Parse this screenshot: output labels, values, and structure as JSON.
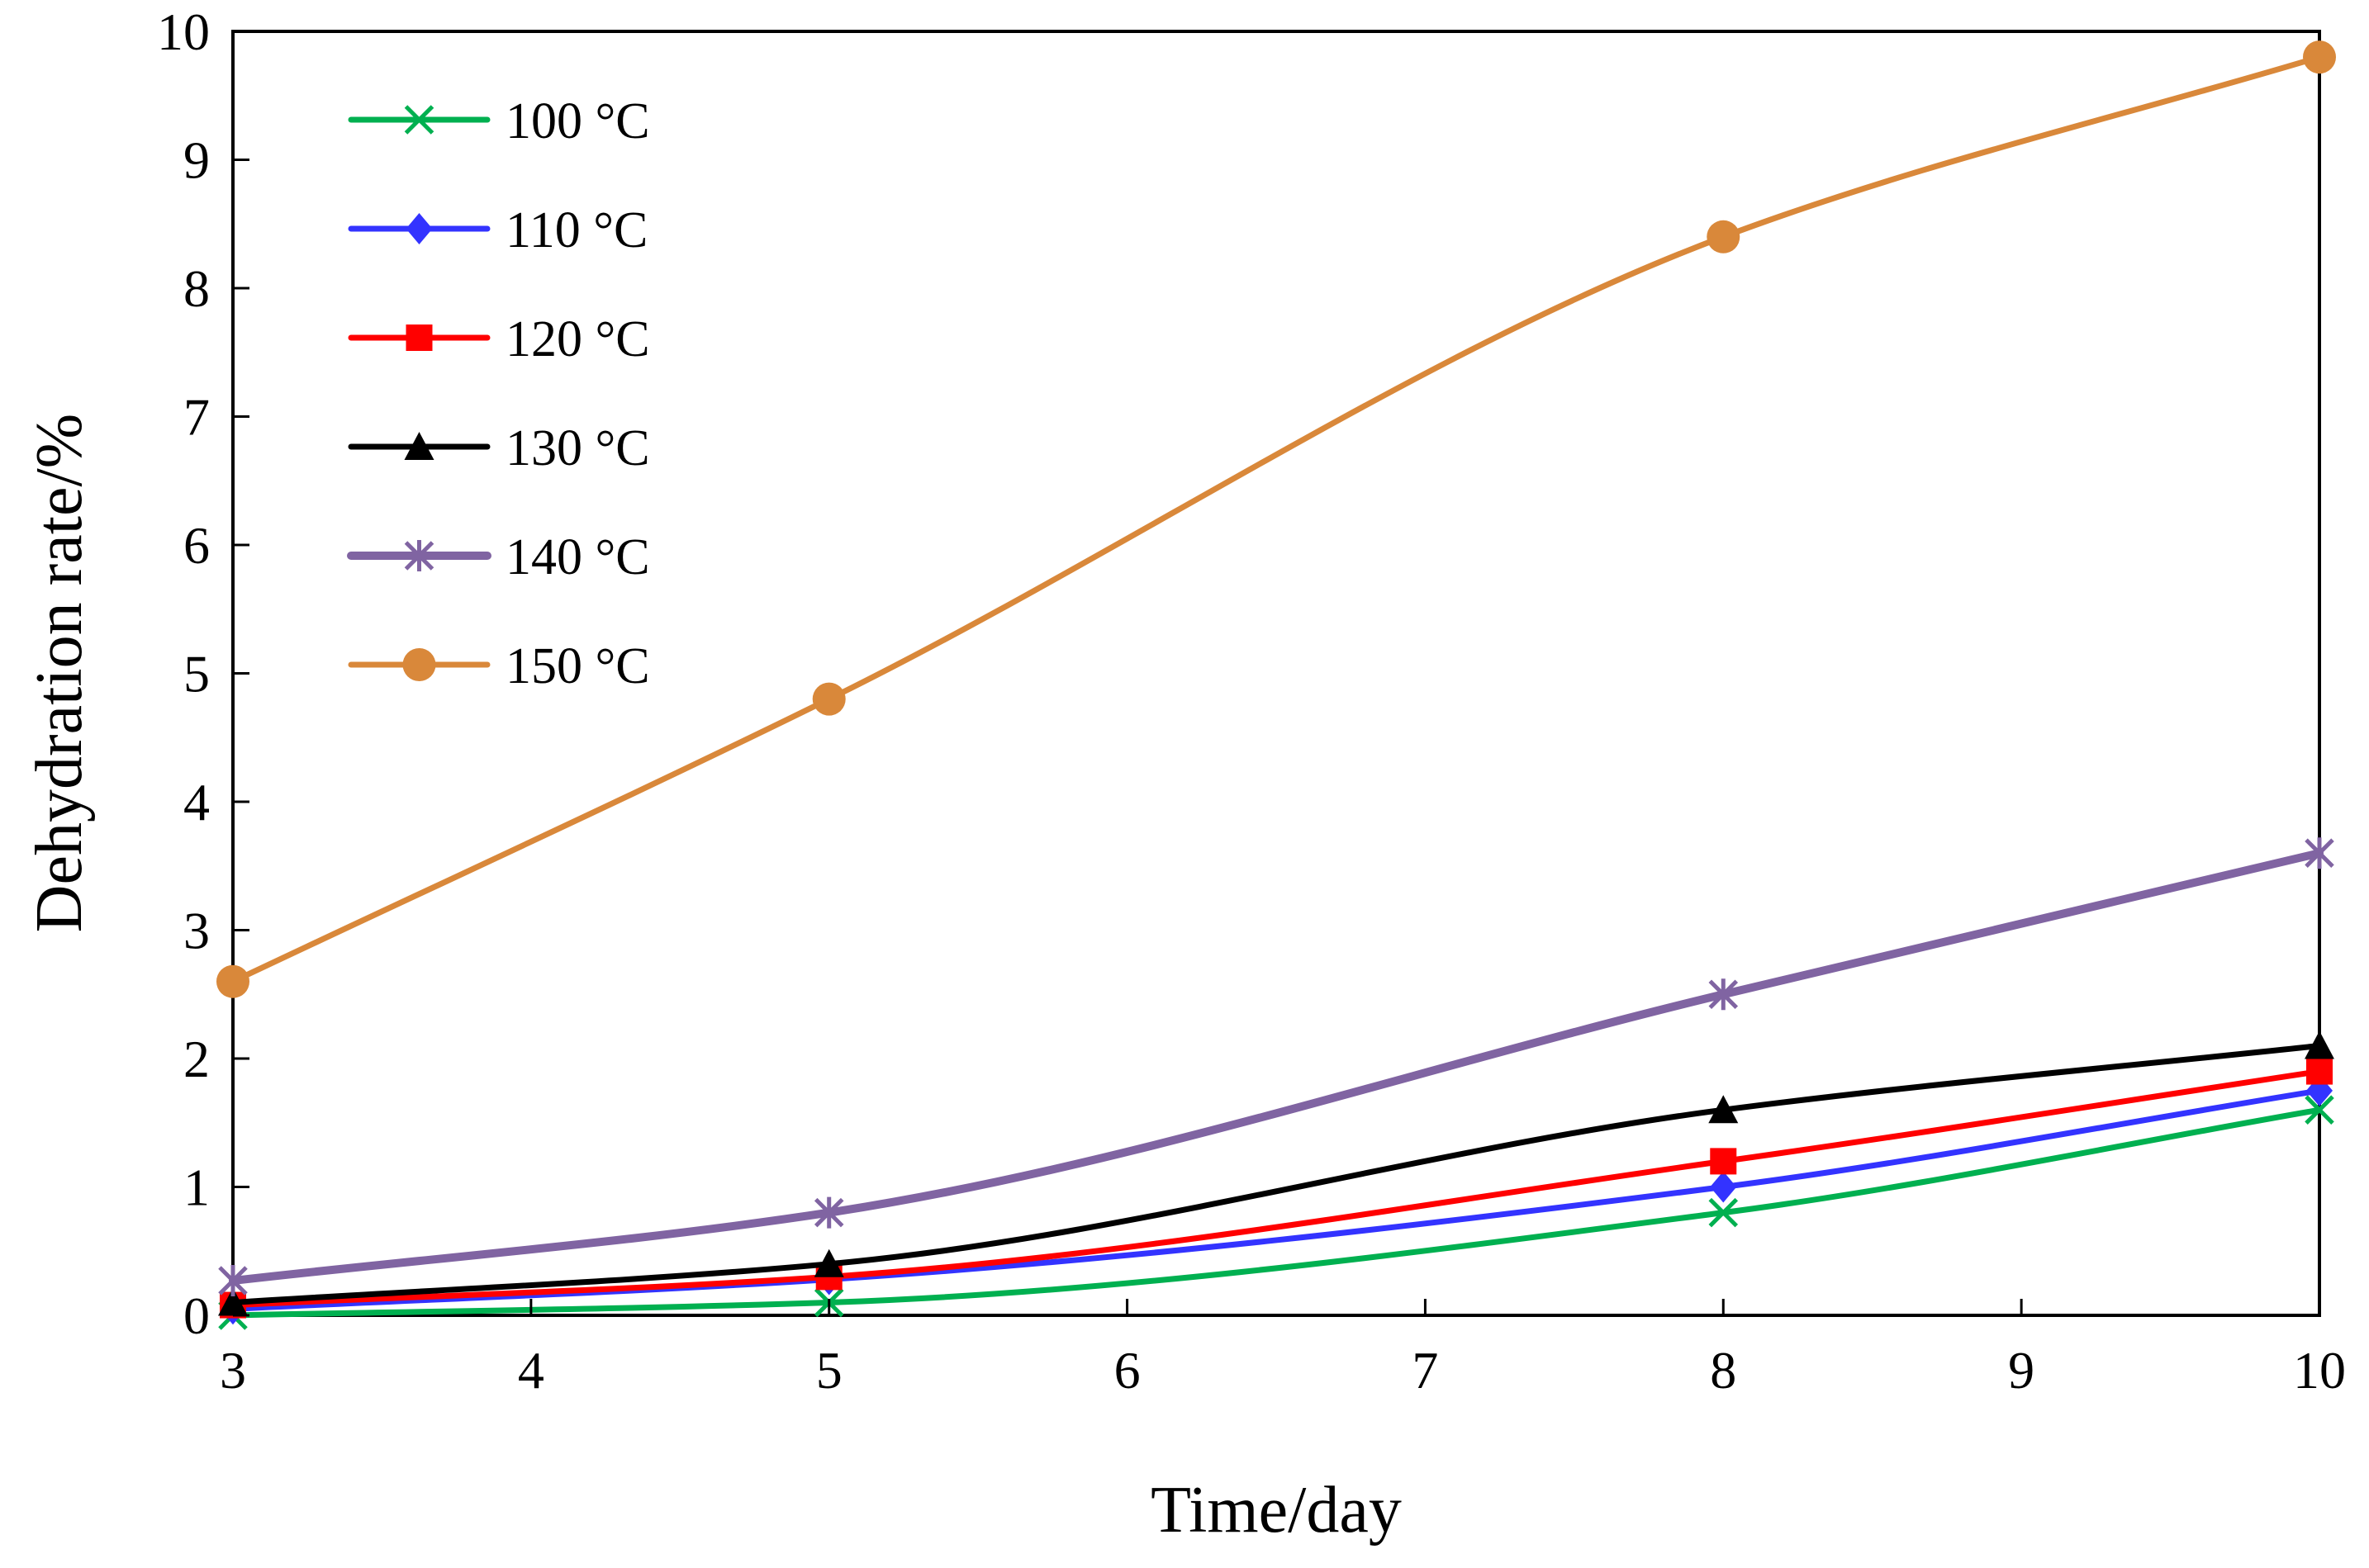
{
  "chart_data": {
    "type": "line",
    "title": "",
    "xlabel": "Time/day",
    "ylabel": "Dehydration rate/%",
    "xlim": [
      3,
      10
    ],
    "ylim": [
      0,
      10
    ],
    "xticks": [
      3,
      4,
      5,
      6,
      7,
      8,
      9,
      10
    ],
    "yticks": [
      0,
      1,
      2,
      3,
      4,
      5,
      6,
      7,
      8,
      9,
      10
    ],
    "grid": false,
    "legend_position": "top-left",
    "x": [
      3,
      5,
      8,
      10
    ],
    "series": [
      {
        "name": "100 °C",
        "values": [
          0.0,
          0.1,
          0.8,
          1.6
        ],
        "color": "#00b050",
        "marker": "x"
      },
      {
        "name": "110 °C",
        "values": [
          0.05,
          0.28,
          1.0,
          1.75
        ],
        "color": "#3333ff",
        "marker": "diamond"
      },
      {
        "name": "120 °C",
        "values": [
          0.08,
          0.3,
          1.2,
          1.9
        ],
        "color": "#ff0000",
        "marker": "square"
      },
      {
        "name": "130 °C",
        "values": [
          0.1,
          0.4,
          1.6,
          2.1
        ],
        "color": "#000000",
        "marker": "triangle"
      },
      {
        "name": "140 °C",
        "values": [
          0.27,
          0.8,
          2.5,
          3.6
        ],
        "color": "#8064a2",
        "marker": "asterisk"
      },
      {
        "name": "150 °C",
        "values": [
          2.6,
          4.8,
          8.4,
          9.8
        ],
        "color": "#d9883a",
        "marker": "circle"
      }
    ]
  }
}
